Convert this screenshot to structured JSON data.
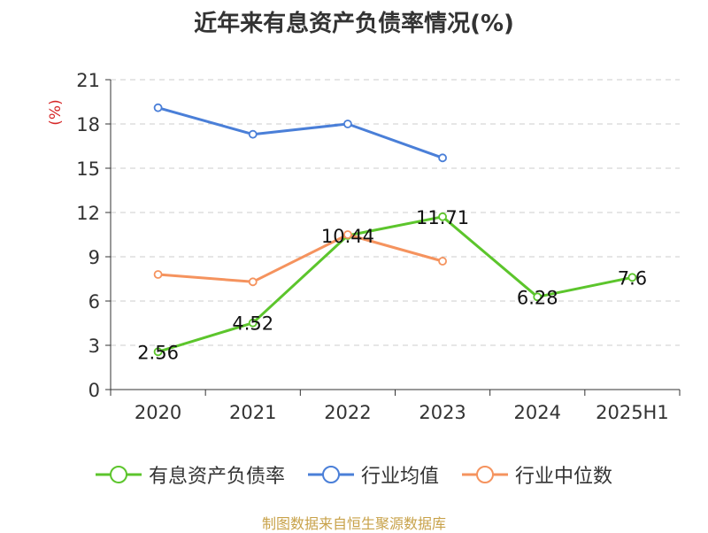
{
  "title": "近年来有息资产负债率情况(%)",
  "source": "制图数据来自恒生聚源数据库",
  "chart_data": {
    "type": "line",
    "title": "近年来有息资产负债率情况(%)",
    "ylabel": "(%)",
    "xlabel": "",
    "categories": [
      "2020",
      "2021",
      "2022",
      "2023",
      "2024",
      "2025H1"
    ],
    "ylim": [
      0,
      21
    ],
    "yticks": [
      0,
      3,
      6,
      9,
      12,
      15,
      18,
      21
    ],
    "grid": true,
    "legend_position": "bottom",
    "series": [
      {
        "name": "有息资产负债率",
        "color": "#5cc52c",
        "values": [
          2.56,
          4.52,
          10.44,
          11.71,
          6.28,
          7.6
        ],
        "labels": [
          "2.56",
          "4.52",
          "10.44",
          "11.71",
          "6.28",
          "7.6"
        ]
      },
      {
        "name": "行业均值",
        "color": "#4a7fd8",
        "values": [
          19.1,
          17.3,
          18.0,
          15.7,
          null,
          null
        ]
      },
      {
        "name": "行业中位数",
        "color": "#f5935e",
        "values": [
          7.8,
          7.3,
          10.5,
          8.7,
          null,
          null
        ]
      }
    ]
  }
}
